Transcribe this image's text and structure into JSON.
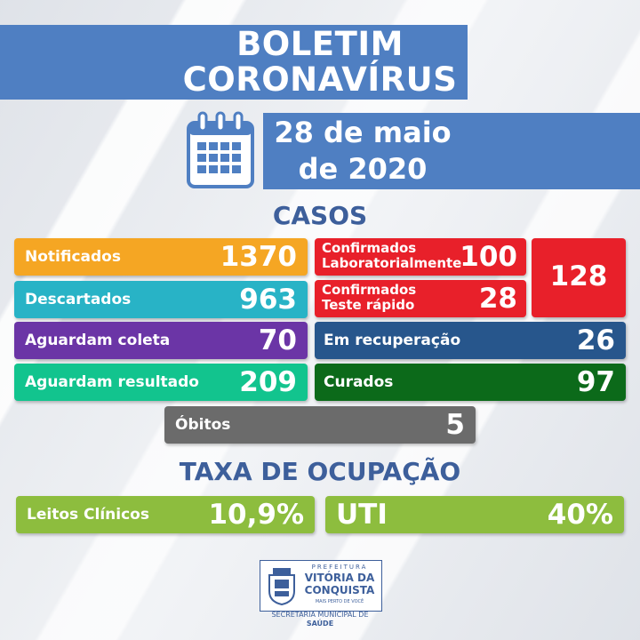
{
  "header": {
    "title_line1": "BOLETIM",
    "title_line2": "CORONAVÍRUS"
  },
  "date": {
    "line1": "28 de maio",
    "line2": "de 2020",
    "icon": "calendar-icon"
  },
  "cases": {
    "heading": "CASOS",
    "notificados": {
      "label": "Notificados",
      "value": "1370",
      "color": "#f5a623"
    },
    "descartados": {
      "label": "Descartados",
      "value": "963",
      "color": "#28b3c6"
    },
    "aguardam_coleta": {
      "label": "Aguardam coleta",
      "value": "70",
      "color": "#6b35a6"
    },
    "aguardam_resultado": {
      "label": "Aguardam resultado",
      "value": "209",
      "color": "#12c48e"
    },
    "confirmados_lab": {
      "label_line1": "Confirmados",
      "label_line2": "Laboratorialmente",
      "value": "100",
      "color": "#e8202a"
    },
    "confirmados_teste": {
      "label_line1": "Confirmados",
      "label_line2": "Teste rápido",
      "value": "28",
      "color": "#e8202a"
    },
    "confirmados_total": {
      "value": "128",
      "color": "#e8202a"
    },
    "recuperacao": {
      "label": "Em recuperação",
      "value": "26",
      "color": "#27568c"
    },
    "curados": {
      "label": "Curados",
      "value": "97",
      "color": "#0c6a1a"
    },
    "obitos": {
      "label": "Óbitos",
      "value": "5",
      "color": "#6b6b6b"
    }
  },
  "occupancy": {
    "heading": "TAXA DE OCUPAÇÃO",
    "leitos": {
      "label": "Leitos Clínicos",
      "value": "10,9%",
      "color": "#8dbd3e"
    },
    "uti": {
      "label": "UTI",
      "value": "40%",
      "color": "#8dbd3e"
    }
  },
  "footer": {
    "prefeitura": "PREFEITURA",
    "city_line1": "VITÓRIA DA",
    "city_line2": "CONQUISTA",
    "slogan": "MAIS PERTO DE VOCÊ",
    "secretaria_line1": "SECRETARIA MUNICIPAL DE",
    "secretaria_line2": "SAÚDE"
  }
}
